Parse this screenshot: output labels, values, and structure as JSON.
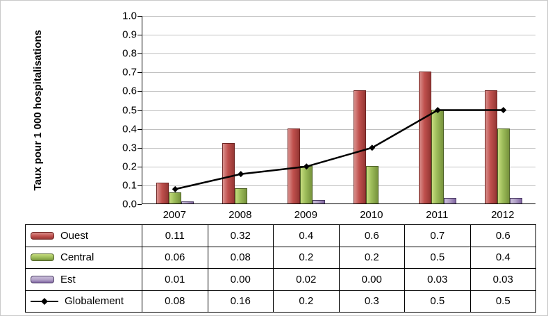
{
  "figure": {
    "background": "#ffffff",
    "border_color": "#c9c9c9"
  },
  "chart_data": {
    "type": "bar",
    "subtype": "grouped-bars-with-line-overlay-and-data-table",
    "ylabel": "Taux pour 1 000 hospitalisations",
    "categories": [
      "2007",
      "2008",
      "2009",
      "2010",
      "2011",
      "2012"
    ],
    "ylim": [
      0,
      1.0
    ],
    "ytick_labels": [
      "1.0",
      "0.9",
      "0.8",
      "0.7",
      "0.6",
      "0.5",
      "0.4",
      "0.3",
      "0.2",
      "0.1",
      "0.0"
    ],
    "grid": true,
    "legend_position": "data-table-left",
    "axis_color": "#000000",
    "gridline_color": "#c0c0c0",
    "series": [
      {
        "name": "Ouest",
        "render": "bar",
        "values": [
          0.11,
          0.32,
          0.4,
          0.6,
          0.7,
          0.6
        ],
        "display_labels": [
          "0.11",
          "0.32",
          "0.4",
          "0.6",
          "0.7",
          "0.6"
        ],
        "fill": {
          "light": "#d9908d",
          "base": "#c0504d",
          "dark": "#953734",
          "border": "#6f2523"
        }
      },
      {
        "name": "Central",
        "render": "bar",
        "values": [
          0.06,
          0.08,
          0.2,
          0.2,
          0.5,
          0.4
        ],
        "display_labels": [
          "0.06",
          "0.08",
          "0.2",
          "0.2",
          "0.5",
          "0.4"
        ],
        "fill": {
          "light": "#c6dc7e",
          "base": "#9bbb59",
          "dark": "#77933c",
          "border": "#4f6228"
        }
      },
      {
        "name": "Est",
        "render": "bar",
        "values": [
          0.01,
          0.0,
          0.02,
          0.0,
          0.03,
          0.03
        ],
        "display_labels": [
          "0.01",
          "0.00",
          "0.02",
          "0.00",
          "0.03",
          "0.03"
        ],
        "fill": {
          "light": "#ccc1dc",
          "base": "#b2a1c7",
          "dark": "#8064a2",
          "border": "#4a3b63"
        }
      },
      {
        "name": "Globalement",
        "render": "line",
        "color": "#000000",
        "marker": "diamond",
        "values": [
          0.08,
          0.16,
          0.2,
          0.3,
          0.5,
          0.5
        ],
        "display_labels": [
          "0.08",
          "0.16",
          "0.2",
          "0.3",
          "0.5",
          "0.5"
        ]
      }
    ]
  }
}
